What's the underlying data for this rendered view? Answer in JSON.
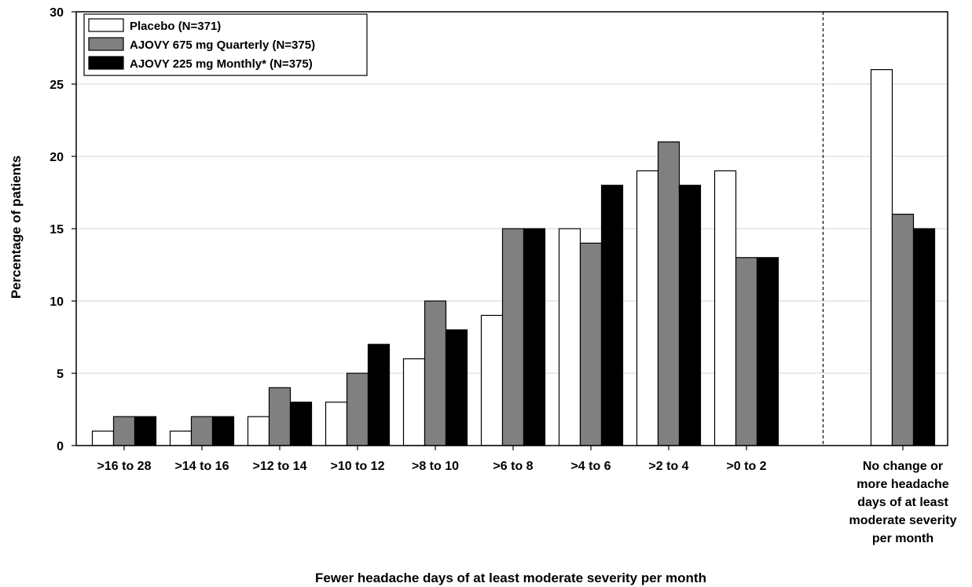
{
  "chart_data": {
    "type": "bar",
    "title": "",
    "xlabel": "Fewer headache days of at least moderate severity per month",
    "ylabel": "Percentage of patients",
    "ylim": [
      0,
      30
    ],
    "yticks": [
      0,
      5,
      10,
      15,
      20,
      25,
      30
    ],
    "grid": "horizontal",
    "legend_position": "top-left",
    "categories": [
      ">16 to 28",
      ">14 to 16",
      ">12 to 14",
      ">10 to 12",
      ">8 to 10",
      ">6 to 8",
      ">4 to 6",
      ">2 to 4",
      ">0 to 2",
      "No change or more headache days of at least moderate severity per month"
    ],
    "category_label_lines": [
      [
        ">16 to 28"
      ],
      [
        ">14 to 16"
      ],
      [
        ">12 to 14"
      ],
      [
        ">10 to 12"
      ],
      [
        ">8 to 10"
      ],
      [
        ">6 to 8"
      ],
      [
        ">4 to 6"
      ],
      [
        ">2 to 4"
      ],
      [
        ">0 to 2"
      ],
      [
        "No change or",
        "more headache",
        "days of at least",
        "moderate severity",
        "per month"
      ]
    ],
    "separator_before_category": 9,
    "series": [
      {
        "name": "Placebo (N=371)",
        "color": "#ffffff",
        "values": [
          1,
          1,
          2,
          3,
          6,
          9,
          15,
          19,
          19,
          26
        ]
      },
      {
        "name": "AJOVY 675 mg Quarterly (N=375)",
        "color": "#808080",
        "values": [
          2,
          2,
          4,
          5,
          10,
          15,
          14,
          21,
          13,
          16
        ]
      },
      {
        "name": "AJOVY 225 mg Monthly* (N=375)",
        "color": "#000000",
        "values": [
          2,
          2,
          3,
          7,
          8,
          15,
          18,
          18,
          13,
          15
        ]
      }
    ]
  }
}
